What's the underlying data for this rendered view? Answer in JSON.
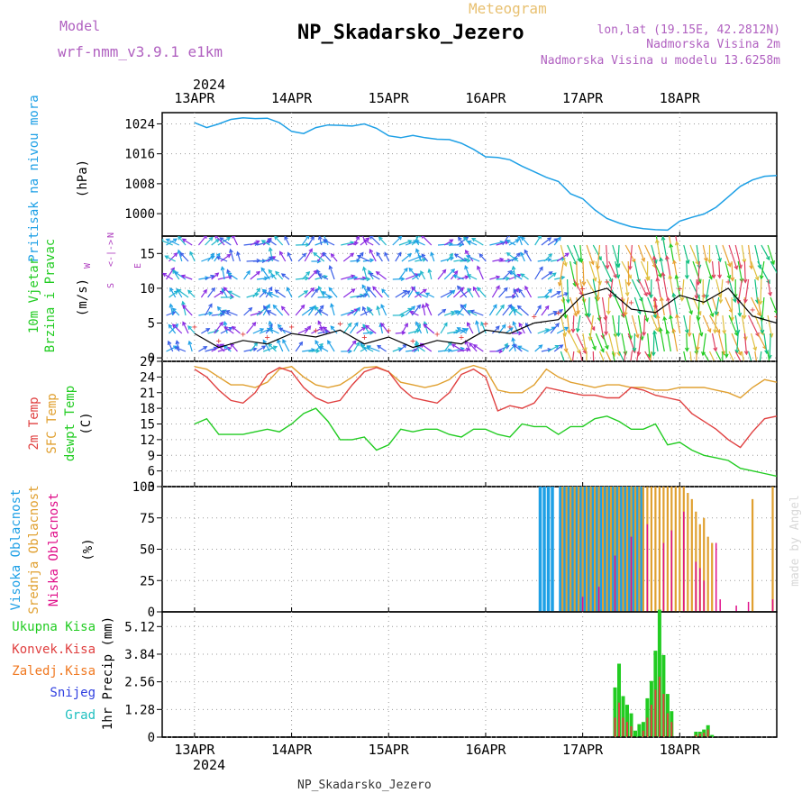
{
  "header": {
    "model_label": "Model",
    "model_name": "wrf-nmm_v3.9.1 e1km",
    "meteogram_label": "Meteogram",
    "station_title": "NP_Skadarsko_Jezero",
    "lonlat": "lon,lat (19.15E, 42.2812N)",
    "altitude": "Nadmorska Visina 2m",
    "model_altitude": "Nadmorska Visina u modelu 13.6258m",
    "year_top": "2024",
    "year_bottom": "2024",
    "footer_station": "NP_Skadarsko_Jezero",
    "watermark": "made by Angel"
  },
  "colors": {
    "pressure": "#1ea0e6",
    "wind_label": "#22cc22",
    "temp2m": "#e04040",
    "sfc_temp": "#e0a030",
    "dewpt": "#22cc22",
    "high_cloud": "#1ea0e6",
    "mid_cloud": "#e0a030",
    "low_cloud": "#e0108a",
    "total_precip": "#22cc22",
    "conv_precip": "#e04040",
    "frozen_precip": "#f07820",
    "snow": "#3040e0",
    "hail": "#20c0c0",
    "compass": "#b040c0",
    "title_purple": "#b060c0"
  },
  "chart_data": [
    {
      "type": "line",
      "panel": "pressure",
      "ylabel": "Pritisak na nivou mora",
      "unit": "(hPa)",
      "y_ticks": [
        1000,
        1008,
        1016,
        1024
      ],
      "ylim": [
        994,
        1027
      ],
      "x_ticks": [
        "13APR",
        "14APR",
        "15APR",
        "16APR",
        "17APR",
        "18APR"
      ],
      "grid": true,
      "series": [
        {
          "name": "Pritisak na nivou mora",
          "x": [
            0,
            3,
            6,
            9,
            12,
            15,
            18,
            21,
            24,
            27,
            30,
            33,
            36,
            39,
            42,
            45,
            48,
            51,
            54,
            57,
            60,
            63,
            66,
            69,
            72,
            75,
            78,
            81,
            84,
            87,
            90,
            93,
            96,
            99,
            102,
            105,
            108,
            111,
            114,
            117,
            120,
            123,
            126,
            129,
            132,
            135,
            138,
            141,
            144
          ],
          "values": [
            1024.3,
            1023.0,
            1024.0,
            1025.2,
            1025.6,
            1025.4,
            1025.5,
            1024.3,
            1022.0,
            1021.4,
            1023.0,
            1023.7,
            1023.6,
            1023.4,
            1024.0,
            1022.8,
            1020.8,
            1020.3,
            1020.9,
            1020.3,
            1019.9,
            1019.8,
            1018.8,
            1017.2,
            1015.2,
            1015.0,
            1014.4,
            1012.7,
            1011.2,
            1009.7,
            1008.6,
            1005.3,
            1004.0,
            1001.0,
            998.7,
            997.5,
            996.5,
            996.0,
            995.7,
            995.6,
            998.0,
            999.0,
            999.9,
            1001.7,
            1004.5,
            1007.3,
            1009.0,
            1010.0,
            1010.2
          ]
        }
      ]
    },
    {
      "type": "scatter",
      "panel": "wind",
      "ylabel": "10m Vjetar Brzina i Pravac",
      "unit": "(m/s)",
      "compass": {
        "n": "N",
        "w": "W",
        "e": "E",
        "s": "S"
      },
      "y_ticks": [
        0,
        5,
        10,
        15
      ],
      "ylim": [
        -0.5,
        17.5
      ],
      "grid": true,
      "series": [
        {
          "name": "10m speed",
          "x": [
            0,
            6,
            12,
            18,
            24,
            30,
            36,
            42,
            48,
            54,
            60,
            66,
            72,
            78,
            84,
            90,
            96,
            102,
            108,
            114,
            120,
            126,
            132,
            138,
            144
          ],
          "values": [
            3.5,
            1.5,
            2.5,
            2.0,
            3.5,
            3.0,
            4.0,
            2.0,
            3.0,
            1.5,
            2.5,
            2.0,
            4.0,
            3.5,
            5.0,
            5.5,
            9.0,
            10.0,
            7.0,
            6.5,
            9.0,
            8.0,
            10.0,
            6.0,
            5.0
          ]
        }
      ]
    },
    {
      "type": "line",
      "panel": "temperature",
      "labels": [
        "2m Temp",
        "SFC Temp",
        "dewpt Temp"
      ],
      "unit": "(C)",
      "y_ticks": [
        3,
        6,
        9,
        12,
        15,
        18,
        21,
        24,
        27
      ],
      "ylim": [
        3,
        27
      ],
      "grid": true,
      "x": [
        0,
        3,
        6,
        9,
        12,
        15,
        18,
        21,
        24,
        27,
        30,
        33,
        36,
        39,
        42,
        45,
        48,
        51,
        54,
        57,
        60,
        63,
        66,
        69,
        72,
        75,
        78,
        81,
        84,
        87,
        90,
        93,
        96,
        99,
        102,
        105,
        108,
        111,
        114,
        117,
        120,
        123,
        126,
        129,
        132,
        135,
        138,
        141,
        144
      ],
      "series": [
        {
          "name": "2m Temp",
          "values": [
            25.5,
            24.0,
            21.5,
            19.5,
            19.0,
            21.0,
            24.5,
            25.8,
            25.0,
            22.0,
            20.0,
            19.0,
            19.5,
            22.5,
            25.0,
            25.8,
            25.0,
            22.0,
            20.0,
            19.5,
            19.0,
            21.0,
            24.5,
            25.5,
            24.0,
            17.5,
            18.5,
            18.0,
            19.0,
            22.0,
            21.5,
            21.0,
            20.5,
            20.5,
            20.0,
            20.0,
            22.0,
            21.5,
            20.5,
            20.0,
            19.5,
            17.0,
            15.5,
            14.0,
            12.0,
            10.5,
            13.5,
            16.0,
            16.5
          ]
        },
        {
          "name": "SFC Temp",
          "values": [
            26.0,
            25.5,
            24.0,
            22.5,
            22.5,
            22.0,
            23.0,
            25.5,
            26.0,
            24.0,
            22.5,
            22.0,
            22.5,
            24.0,
            25.8,
            26.0,
            25.0,
            23.0,
            22.5,
            22.0,
            22.5,
            23.5,
            25.5,
            26.2,
            25.5,
            21.5,
            21.0,
            21.0,
            22.5,
            25.5,
            24.0,
            23.0,
            22.5,
            22.0,
            22.5,
            22.5,
            22.0,
            22.0,
            21.5,
            21.5,
            22.0,
            22.0,
            22.0,
            21.5,
            21.0,
            20.0,
            22.0,
            23.5,
            23.0
          ]
        },
        {
          "name": "dewpt Temp",
          "values": [
            15.0,
            16.0,
            13.0,
            13.0,
            13.0,
            13.5,
            14.0,
            13.5,
            15.0,
            17.0,
            18.0,
            15.5,
            12.0,
            12.0,
            12.5,
            10.0,
            11.0,
            14.0,
            13.5,
            14.0,
            14.0,
            13.0,
            12.5,
            14.0,
            14.0,
            13.0,
            12.5,
            15.0,
            14.5,
            14.5,
            13.0,
            14.5,
            14.5,
            16.0,
            16.5,
            15.5,
            14.0,
            14.0,
            15.0,
            11.0,
            11.5,
            10.0,
            9.0,
            8.5,
            8.0,
            6.5,
            6.0,
            5.5,
            5.0
          ]
        }
      ]
    },
    {
      "type": "bar",
      "panel": "cloud",
      "labels": [
        "Visoka Oblacnost",
        "Srednja Oblacnost",
        "Niska Oblacnost"
      ],
      "unit": "(%)",
      "y_ticks": [
        0,
        25,
        50,
        75,
        100
      ],
      "ylim": [
        0,
        100
      ],
      "grid": true,
      "series": [
        {
          "name": "Visoka Oblacnost",
          "x": [
            85.5,
            86.5,
            87.5,
            88.5,
            90.5,
            91.5,
            92.5,
            93.5,
            94.5,
            95.5,
            96.5,
            97.5,
            98.5,
            99.5,
            100.5,
            101.5,
            102.5,
            103.5,
            104.5,
            105.5,
            106.5,
            107.5,
            108.5,
            109.5,
            110.5
          ],
          "values": [
            100,
            100,
            100,
            100,
            100,
            100,
            100,
            100,
            100,
            100,
            100,
            100,
            100,
            100,
            100,
            100,
            100,
            100,
            100,
            100,
            100,
            100,
            100,
            100,
            100
          ]
        },
        {
          "name": "Srednja Oblacnost",
          "x": [
            91,
            92,
            93,
            94,
            95,
            96,
            97,
            98,
            99,
            100,
            101,
            102,
            103,
            104,
            105,
            106,
            107,
            108,
            109,
            110,
            111,
            112,
            113,
            114,
            115,
            116,
            117,
            118,
            119,
            120,
            121,
            122,
            123,
            124,
            125,
            126,
            127,
            128,
            138,
            143
          ],
          "values": [
            100,
            100,
            100,
            100,
            100,
            100,
            100,
            100,
            100,
            100,
            100,
            100,
            100,
            100,
            100,
            100,
            100,
            100,
            100,
            100,
            100,
            100,
            100,
            100,
            100,
            100,
            100,
            100,
            100,
            100,
            100,
            95,
            90,
            80,
            70,
            75,
            60,
            55,
            90,
            100
          ]
        },
        {
          "name": "Niska Oblacnost",
          "x": [
            96,
            100,
            104,
            108,
            112,
            116,
            118,
            121,
            124,
            125,
            126,
            129,
            130,
            134,
            137,
            143
          ],
          "values": [
            12,
            20,
            45,
            60,
            70,
            55,
            65,
            80,
            40,
            35,
            25,
            55,
            10,
            5,
            8,
            10
          ]
        }
      ]
    },
    {
      "type": "bar",
      "panel": "precip",
      "labels": [
        "Ukupna Kisa",
        "Konvek.Kisa",
        "Zaledj.Kisa",
        "Snijeg",
        "Grad"
      ],
      "unit": "1hr Precip (mm)",
      "y_ticks": [
        "0",
        "1.28",
        "2.56",
        "3.84",
        "5.12"
      ],
      "ylim": [
        0,
        5.8
      ],
      "grid": true,
      "series": [
        {
          "name": "Ukupna Kisa",
          "x": [
            104,
            105,
            106,
            107,
            108,
            109,
            110,
            111,
            112,
            113,
            114,
            115,
            116,
            117,
            118,
            124,
            125,
            126,
            127,
            128
          ],
          "values": [
            2.3,
            3.4,
            1.9,
            1.5,
            1.1,
            0.3,
            0.6,
            0.7,
            1.8,
            2.6,
            4.0,
            5.9,
            3.8,
            2.0,
            1.2,
            0.25,
            0.25,
            0.35,
            0.55,
            0.1
          ]
        },
        {
          "name": "Konvek.Kisa",
          "x": [
            104,
            105,
            106,
            107,
            108,
            111,
            112,
            113,
            114,
            115,
            116,
            117,
            118,
            124,
            125,
            126,
            127
          ],
          "values": [
            0.9,
            1.6,
            0.9,
            0.7,
            0.5,
            0.3,
            0.9,
            1.5,
            2.2,
            2.8,
            2.0,
            1.1,
            0.7,
            0.1,
            0.15,
            0.2,
            0.35
          ]
        }
      ]
    }
  ]
}
